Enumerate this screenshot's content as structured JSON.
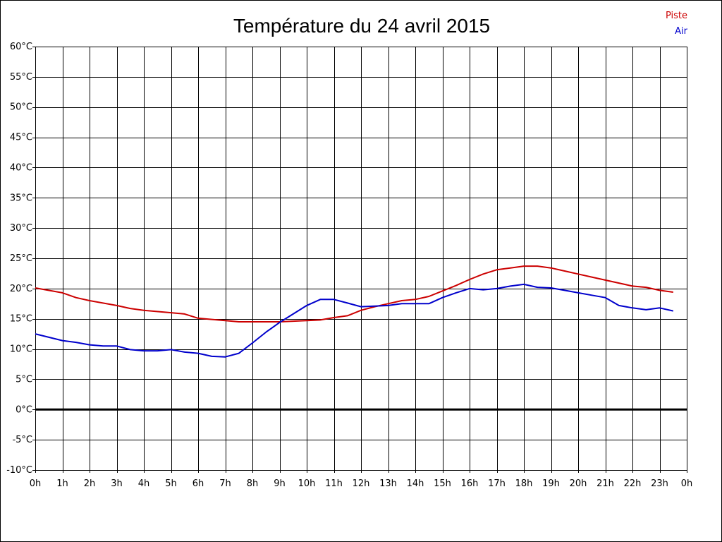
{
  "chart_data": {
    "type": "line",
    "title": "Température du 24 avril 2015",
    "xlabel": "",
    "ylabel": "",
    "xlim": [
      0,
      24
    ],
    "ylim": [
      -10,
      60
    ],
    "grid": true,
    "legend_position": "top-right",
    "x_tick_labels": [
      "0h",
      "1h",
      "2h",
      "3h",
      "4h",
      "5h",
      "6h",
      "7h",
      "8h",
      "9h",
      "10h",
      "11h",
      "12h",
      "13h",
      "14h",
      "15h",
      "16h",
      "17h",
      "18h",
      "19h",
      "20h",
      "21h",
      "22h",
      "23h",
      "0h"
    ],
    "y_tick_labels": [
      "60°C",
      "55°C",
      "50°C",
      "45°C",
      "40°C",
      "35°C",
      "30°C",
      "25°C",
      "20°C",
      "15°C",
      "10°C",
      "5°C",
      "0°C",
      "-5°C",
      "-10°C"
    ],
    "y_tick_values": [
      60,
      55,
      50,
      45,
      40,
      35,
      30,
      25,
      20,
      15,
      10,
      5,
      0,
      -5,
      -10
    ],
    "zero_line": true,
    "series": [
      {
        "name": "Piste",
        "color": "#cc0000",
        "x": [
          0,
          1,
          1.5,
          2,
          3,
          3.5,
          4,
          5,
          5.5,
          6,
          6.5,
          7,
          7.5,
          8,
          9,
          10,
          10.5,
          11,
          11.5,
          12,
          12.5,
          13,
          13.5,
          14,
          14.5,
          15,
          15.5,
          16,
          16.5,
          17,
          17.5,
          18,
          18.5,
          19,
          19.5,
          20,
          20.5,
          21,
          21.5,
          22,
          22.5,
          23,
          23.5
        ],
        "y": [
          20.1,
          19.3,
          18.5,
          18.0,
          17.2,
          16.7,
          16.4,
          16.0,
          15.8,
          15.1,
          14.9,
          14.7,
          14.5,
          14.5,
          14.5,
          14.7,
          14.8,
          15.2,
          15.5,
          16.4,
          17.0,
          17.5,
          18.0,
          18.2,
          18.7,
          19.6,
          20.5,
          21.5,
          22.4,
          23.1,
          23.4,
          23.7,
          23.7,
          23.4,
          22.9,
          22.4,
          21.9,
          21.4,
          20.9,
          20.4,
          20.2,
          19.7,
          19.4
        ]
      },
      {
        "name": "Air",
        "color": "#0000cc",
        "x": [
          0,
          1,
          1.5,
          2,
          2.5,
          3,
          3.5,
          4,
          4.5,
          5,
          5.5,
          6,
          6.5,
          7,
          7.5,
          8,
          8.5,
          9,
          9.5,
          10,
          10.5,
          11,
          11.5,
          12,
          12.5,
          13,
          13.5,
          14,
          14.5,
          15,
          15.5,
          16,
          16.5,
          17,
          17.5,
          18,
          18.5,
          19,
          19.5,
          20,
          20.5,
          21,
          21.5,
          22,
          22.5,
          23,
          23.5
        ],
        "y": [
          12.5,
          11.4,
          11.1,
          10.7,
          10.5,
          10.5,
          9.9,
          9.7,
          9.7,
          9.9,
          9.5,
          9.3,
          8.8,
          8.7,
          9.3,
          11.0,
          12.8,
          14.4,
          15.8,
          17.2,
          18.2,
          18.2,
          17.6,
          17.0,
          17.1,
          17.2,
          17.5,
          17.5,
          17.5,
          18.5,
          19.3,
          20.0,
          19.8,
          20.0,
          20.4,
          20.7,
          20.2,
          20.1,
          19.7,
          19.3,
          18.9,
          18.5,
          17.2,
          16.8,
          16.5,
          16.8,
          16.3
        ]
      }
    ]
  }
}
